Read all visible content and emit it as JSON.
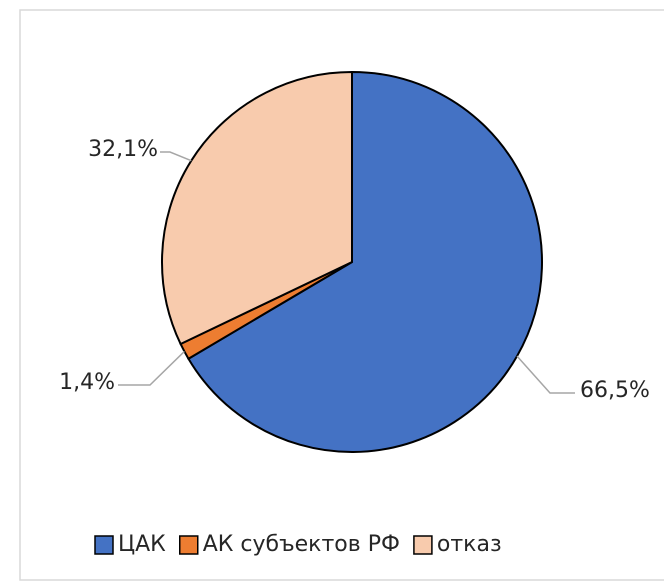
{
  "chart_data": {
    "type": "pie",
    "categories": [
      "ЦАК",
      "АК субъектов РФ",
      "отказ"
    ],
    "values": [
      66.5,
      1.4,
      32.1
    ],
    "value_labels": [
      "66,5%",
      "1,4%",
      "32,1%"
    ],
    "colors": [
      "#4472c4",
      "#ed7d31",
      "#f8cbad"
    ],
    "legend": "bottom"
  }
}
